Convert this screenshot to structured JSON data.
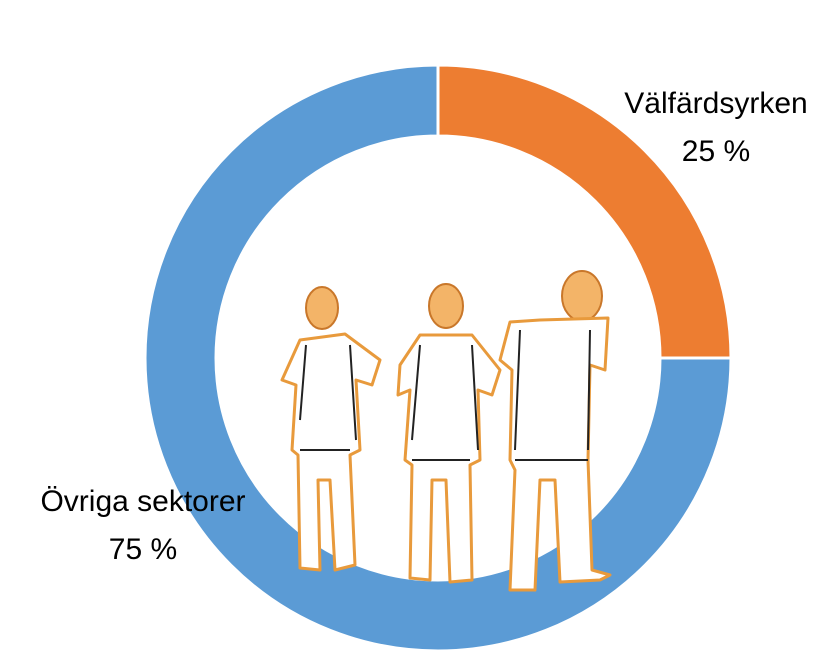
{
  "chart_data": {
    "type": "donut",
    "categories": [
      "Välfärdsyrken",
      "Övriga sektorer"
    ],
    "values": [
      25,
      75
    ],
    "value_labels": [
      "25 %",
      "75 %"
    ],
    "colors": [
      "#ED7D31",
      "#5B9BD5"
    ]
  }
}
